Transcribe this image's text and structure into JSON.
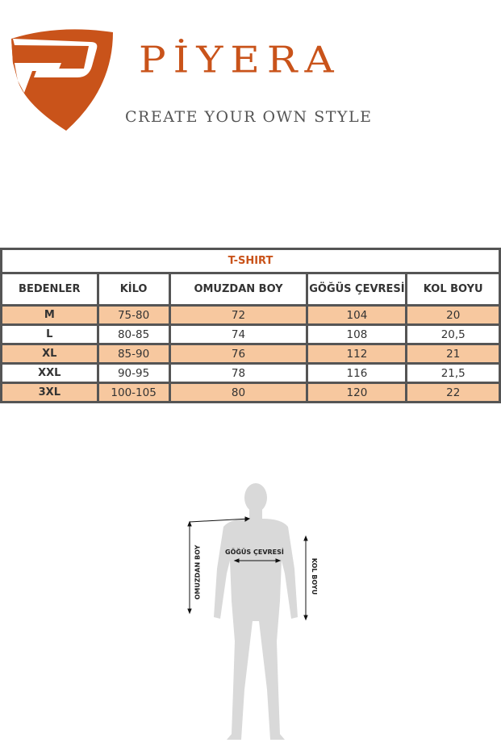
{
  "brand": {
    "name": "PİYERA",
    "tagline": "CREATE YOUR OWN STYLE",
    "color": "#c9531a"
  },
  "table": {
    "title": "T-SHIRT",
    "headers": [
      "BEDENLER",
      "KİLO",
      "OMUZDAN BOY",
      "GÖĞÜS ÇEVRESİ",
      "KOL BOYU"
    ],
    "rows": [
      [
        "M",
        "75-80",
        "72",
        "104",
        "20"
      ],
      [
        "L",
        "80-85",
        "74",
        "108",
        "20,5"
      ],
      [
        "XL",
        "85-90",
        "76",
        "112",
        "21"
      ],
      [
        "XXL",
        "90-95",
        "78",
        "116",
        "21,5"
      ],
      [
        "3XL",
        "100-105",
        "80",
        "120",
        "22"
      ]
    ],
    "highlight_color": "#f7c89f"
  },
  "figure": {
    "labels": {
      "shoulder_length": "OMUZDAN BOY",
      "chest": "GÖĞÜS ÇEVRESİ",
      "sleeve": "KOL BOYU"
    }
  }
}
